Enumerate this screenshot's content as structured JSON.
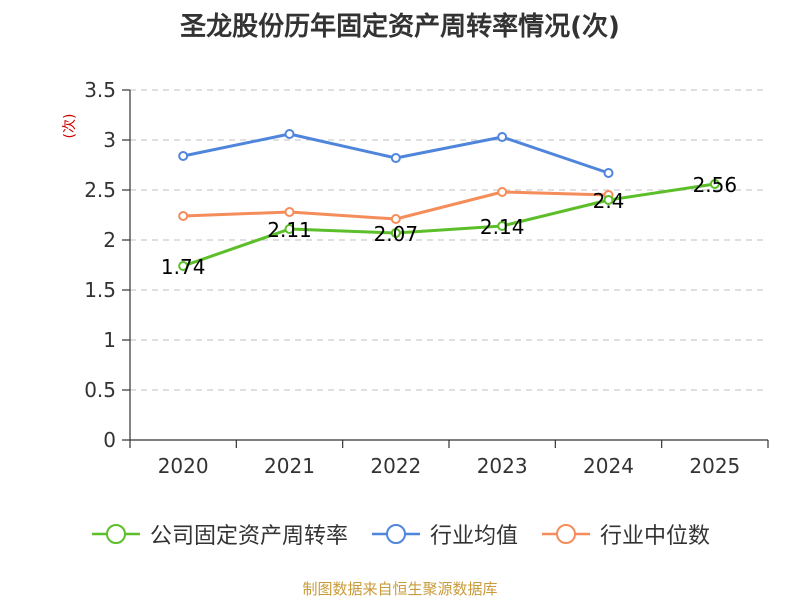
{
  "chart_data": {
    "type": "line",
    "title": "圣龙股份历年固定资产周转率情况(次)",
    "ylabel": "(次)",
    "xlabel": "",
    "categories": [
      "2020",
      "2021",
      "2022",
      "2023",
      "2024",
      "2025"
    ],
    "ylim": [
      0,
      3.5
    ],
    "yticks": [
      "0",
      "0.5",
      "1",
      "1.5",
      "2",
      "2.5",
      "3",
      "3.5"
    ],
    "grid": true,
    "series": [
      {
        "name": "公司固定资产周转率",
        "color": "#5cbf2a",
        "values": [
          1.74,
          2.11,
          2.07,
          2.14,
          2.4,
          2.56
        ],
        "labels": [
          "1.74",
          "2.11",
          "2.07",
          "2.14",
          "2.4",
          "2.56"
        ]
      },
      {
        "name": "行业均值",
        "color": "#4f86db",
        "values": [
          2.84,
          3.06,
          2.82,
          3.03,
          2.67,
          null
        ]
      },
      {
        "name": "行业中位数",
        "color": "#f48d5a",
        "values": [
          2.24,
          2.28,
          2.21,
          2.48,
          2.45,
          null
        ]
      }
    ],
    "legend_position": "bottom"
  },
  "source_text": "制图数据来自恒生聚源数据库"
}
